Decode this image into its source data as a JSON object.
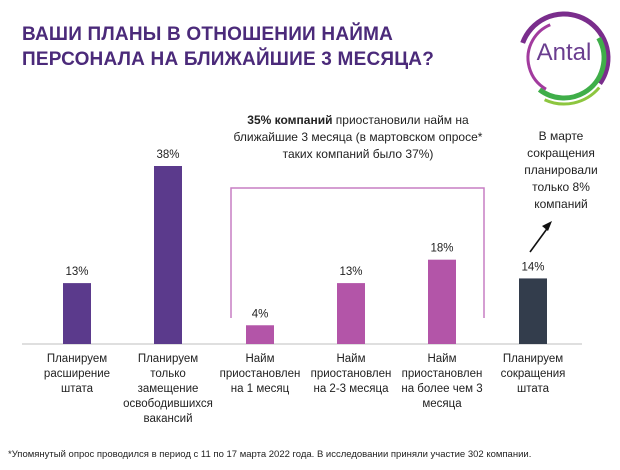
{
  "title": {
    "line1": "ВАШИ ПЛАНЫ В ОТНОШЕНИИ НАЙМА",
    "line2": "ПЕРСОНАЛА НА БЛИЖАЙШИЕ 3 МЕСЯЦА?"
  },
  "logo": {
    "text": "Antal"
  },
  "callout": {
    "bold": "35% компаний",
    "rest": " приостановили найм на ближайшие 3 месяца (в мартовском опросе* таких компаний было 37%)"
  },
  "note": {
    "text": "В марте сокращения планировали только 8% компаний"
  },
  "footnote": "*Упомянутый опрос проводился в период с 11 по 17 марта 2022 года. В исследовании приняли участие 302 компании.",
  "colors": {
    "purple_dark": "#5b3a8c",
    "magenta": "#b355a8",
    "slate": "#333d4c",
    "bracket": "#c77fc4"
  },
  "chart_data": {
    "type": "bar",
    "categories": [
      "Планируем расширение штата",
      "Планируем только замещение освободившихся вакансий",
      "Найм приостановлен на 1 месяц",
      "Найм приостановлен на 2-3 месяца",
      "Найм приостановлен на более чем 3 месяца",
      "Планируем сокращения штата"
    ],
    "values": [
      13,
      38,
      4,
      13,
      18,
      14
    ],
    "data_labels": [
      "13%",
      "38%",
      "4%",
      "13%",
      "18%",
      "14%"
    ],
    "bar_colors": [
      "#5b3a8c",
      "#5b3a8c",
      "#b355a8",
      "#b355a8",
      "#b355a8",
      "#333d4c"
    ],
    "ylim": [
      0,
      40
    ],
    "grid": false,
    "legend": "none"
  }
}
